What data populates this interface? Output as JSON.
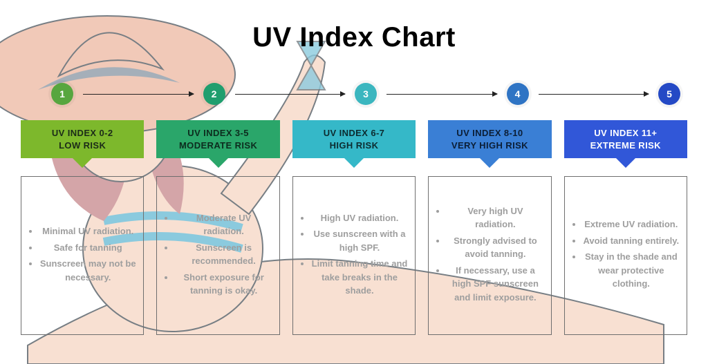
{
  "title": "UV Index Chart",
  "background": "#ffffff",
  "illustration": {
    "hat_fill": "#e9a689",
    "hat_band": "#6b7b8c",
    "hair": "#b96a6f",
    "skin": "#f4cdb5",
    "bikini": "#3fa8c9",
    "outline": "#1e2a33"
  },
  "detail_text_color": "#9e9e9e",
  "detail_border_color": "#6e6e6e",
  "arrow_color": "#222222",
  "levels": [
    {
      "step": "1",
      "circle_color": "#57a63f",
      "banner_color": "#7db82c",
      "banner_text_color": "#1c2b18",
      "range": "UV INDEX 0-2",
      "risk": "LOW RISK",
      "points": [
        "Minimal UV radiation.",
        "Safe for tanning",
        "Sunscreen may not be necessary."
      ]
    },
    {
      "step": "2",
      "circle_color": "#1f9e6e",
      "banner_color": "#2aa66a",
      "banner_text_color": "#0c2c1e",
      "range": "UV INDEX 3-5",
      "risk": "MODERATE RISK",
      "points": [
        "Moderate UV radiation.",
        "Sunscreen is recommended.",
        "Short exposure for tanning is okay."
      ]
    },
    {
      "step": "3",
      "circle_color": "#3bb6bf",
      "banner_color": "#35b8c8",
      "banner_text_color": "#0c2c30",
      "range": "UV INDEX 6-7",
      "risk": "HIGH RISK",
      "points": [
        "High UV radiation.",
        "Use sunscreen with a high SPF.",
        "Limit tanning time and take breaks in the shade."
      ]
    },
    {
      "step": "4",
      "circle_color": "#2f74c4",
      "banner_color": "#3a7fd5",
      "banner_text_color": "#0b1e36",
      "range": "UV INDEX 8-10",
      "risk": "VERY HIGH RISK",
      "points": [
        "Very high UV radiation.",
        "Strongly advised to avoid tanning.",
        "If necessary, use a high SPF sunscreen and limit exposure."
      ]
    },
    {
      "step": "5",
      "circle_color": "#2449c5",
      "banner_color": "#3157d8",
      "banner_text_color": "#ffffff",
      "range": "UV INDEX 11+",
      "risk": "EXTREME RISK",
      "points": [
        "Extreme UV radiation.",
        "Avoid tanning entirely.",
        "Stay in the shade and wear protective clothing."
      ]
    }
  ]
}
